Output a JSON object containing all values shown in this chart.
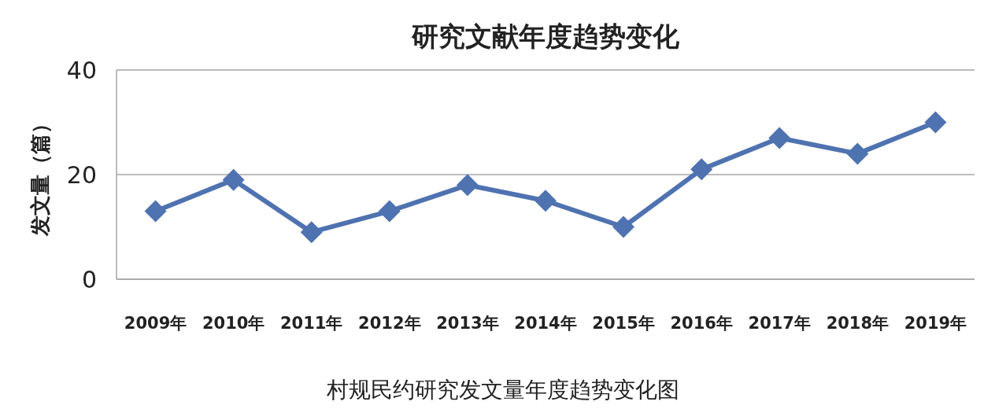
{
  "chart_data": {
    "type": "line",
    "title": "研究文献年度趋势变化",
    "ylabel": "发文量（篇）",
    "categories": [
      "2009年",
      "2010年",
      "2011年",
      "2012年",
      "2013年",
      "2014年",
      "2015年",
      "2016年",
      "2017年",
      "2018年",
      "2019年"
    ],
    "series": [
      {
        "color": "#4f72b0",
        "values": [
          13,
          19,
          9,
          13,
          18,
          15,
          10,
          21,
          27,
          24,
          30
        ]
      }
    ],
    "ylim": [
      0,
      40
    ],
    "yticks": [
      0,
      20,
      40
    ],
    "grid": "y",
    "marker": "diamond",
    "line_style": "solid",
    "annotations": [
      "村规民约研究发文量年度趋势变化图"
    ]
  }
}
